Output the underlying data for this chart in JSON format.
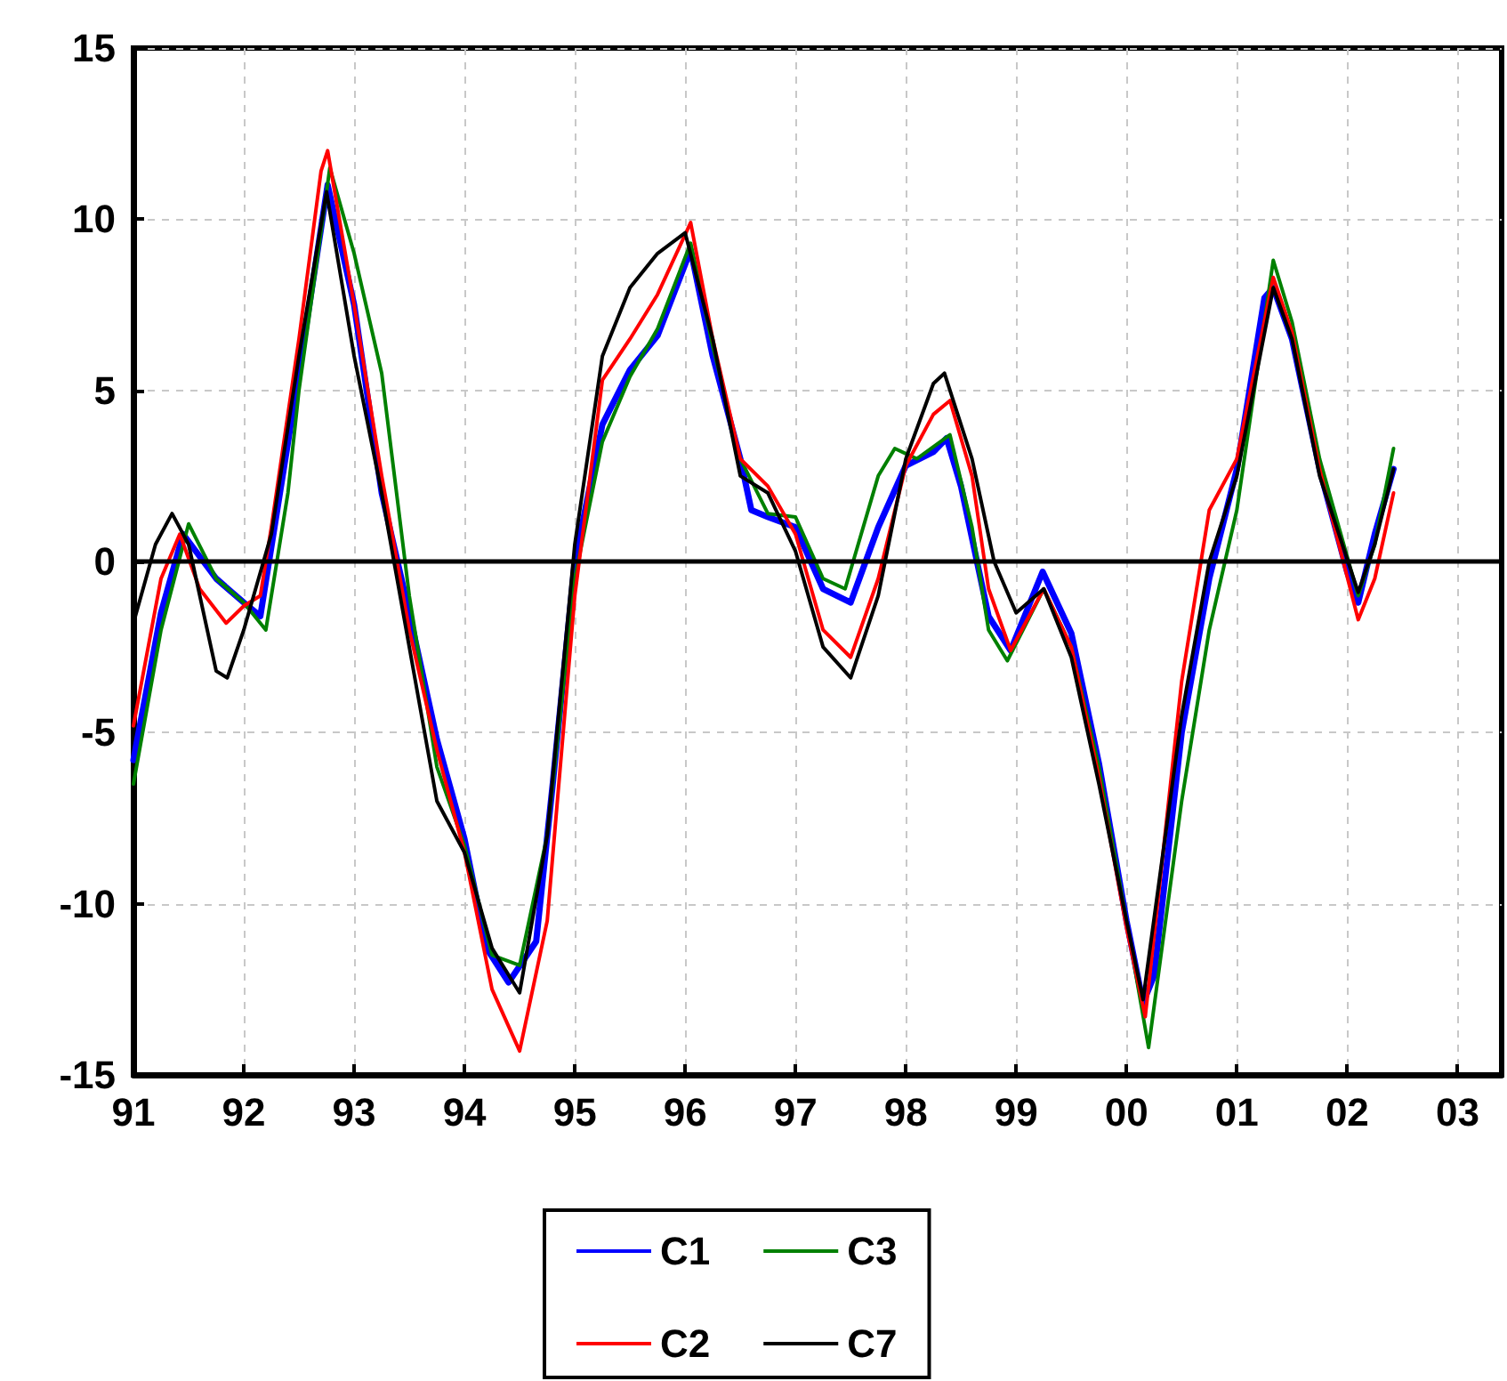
{
  "chart_data": {
    "type": "line",
    "legend": "bottom",
    "grid": true,
    "line_style": "solid",
    "marker": "none",
    "xlim": [
      1991,
      2003.4
    ],
    "xticks": [
      {
        "value": 1991,
        "label": "91"
      },
      {
        "value": 1992,
        "label": "92"
      },
      {
        "value": 1993,
        "label": "93"
      },
      {
        "value": 1994,
        "label": "94"
      },
      {
        "value": 1995,
        "label": "95"
      },
      {
        "value": 1996,
        "label": "96"
      },
      {
        "value": 1997,
        "label": "97"
      },
      {
        "value": 1998,
        "label": "98"
      },
      {
        "value": 1999,
        "label": "99"
      },
      {
        "value": 2000,
        "label": "00"
      },
      {
        "value": 2001,
        "label": "01"
      },
      {
        "value": 2002,
        "label": "02"
      },
      {
        "value": 2003,
        "label": "03"
      }
    ],
    "ylim": [
      -15,
      15
    ],
    "yticks": [
      -15,
      -10,
      -5,
      0,
      5,
      10,
      15
    ],
    "ref_lines": [
      {
        "axis": "y",
        "value": 0,
        "color": "#000000",
        "line_style": "solid"
      }
    ],
    "series": [
      {
        "name": "C1",
        "color": "#0000ff",
        "x": [
          1991,
          1991.25,
          1991.45,
          1991.75,
          1992,
          1992.15,
          1992.5,
          1992.76,
          1993,
          1993.25,
          1993.5,
          1993.75,
          1994,
          1994.2,
          1994.4,
          1994.65,
          1994.8,
          1995,
          1995.25,
          1995.5,
          1995.75,
          1996.05,
          1996.25,
          1996.5,
          1996.6,
          1996.75,
          1997,
          1997.25,
          1997.5,
          1997.75,
          1998,
          1998.25,
          1998.37,
          1998.5,
          1998.75,
          1998.95,
          1999.24,
          1999.5,
          1999.75,
          2000,
          2000.15,
          2000.25,
          2000.5,
          2000.75,
          2001,
          2001.25,
          2001.33,
          2001.5,
          2001.75,
          2002,
          2002.1,
          2002.25,
          2002.42
        ],
        "values": [
          -5.8,
          -1.5,
          0.8,
          -0.5,
          -1.2,
          -1.6,
          5.5,
          11.0,
          7.5,
          2.0,
          -1.5,
          -5.2,
          -8.1,
          -11.3,
          -12.3,
          -11.1,
          -6.5,
          0,
          4.0,
          5.6,
          6.6,
          9.1,
          6.0,
          3.0,
          1.5,
          1.3,
          1.0,
          -0.8,
          -1.2,
          1.0,
          2.8,
          3.2,
          3.6,
          2.2,
          -1.6,
          -2.6,
          -0.3,
          -2.1,
          -5.9,
          -10.5,
          -12.9,
          -12.1,
          -5.0,
          -0.5,
          2.7,
          7.7,
          8.0,
          6.5,
          2.7,
          -0.3,
          -1.2,
          0.8,
          2.7
        ]
      },
      {
        "name": "C3",
        "color": "#008000",
        "x": [
          1991,
          1991.25,
          1991.5,
          1991.75,
          1992,
          1992.2,
          1992.4,
          1992.5,
          1992.78,
          1993,
          1993.25,
          1993.5,
          1993.75,
          1994,
          1994.25,
          1994.5,
          1994.75,
          1995,
          1995.25,
          1995.5,
          1995.75,
          1996.05,
          1996.25,
          1996.5,
          1996.75,
          1997,
          1997.25,
          1997.45,
          1997.75,
          1997.9,
          1998.1,
          1998.4,
          1998.6,
          1998.75,
          1998.92,
          1999.25,
          1999.5,
          1999.75,
          2000,
          2000.2,
          2000.5,
          2000.75,
          2001,
          2001.33,
          2001.5,
          2001.75,
          2002.1,
          2002.25,
          2002.42
        ],
        "values": [
          -6.5,
          -2.0,
          1.1,
          -0.5,
          -1.2,
          -2.0,
          2.0,
          5.0,
          11.5,
          9.0,
          5.5,
          -1.0,
          -6.0,
          -8.3,
          -11.5,
          -11.8,
          -8.0,
          -0.5,
          3.5,
          5.4,
          6.8,
          9.3,
          6.3,
          3.0,
          1.4,
          1.3,
          -0.5,
          -0.8,
          2.5,
          3.3,
          3.0,
          3.7,
          1.0,
          -2.0,
          -2.9,
          -0.8,
          -2.5,
          -6.0,
          -10.5,
          -14.2,
          -7.0,
          -2.0,
          1.5,
          8.8,
          7.0,
          3.0,
          -1.0,
          0.5,
          3.3
        ]
      },
      {
        "name": "C2",
        "color": "#ff0000",
        "x": [
          1991,
          1991.25,
          1991.42,
          1991.6,
          1991.84,
          1992,
          1992.15,
          1992.25,
          1992.5,
          1992.7,
          1992.76,
          1993,
          1993.25,
          1993.5,
          1993.75,
          1994,
          1994.25,
          1994.5,
          1994.75,
          1995,
          1995.25,
          1995.5,
          1995.75,
          1996.05,
          1996.25,
          1996.5,
          1996.75,
          1997,
          1997.25,
          1997.5,
          1997.75,
          1998,
          1998.25,
          1998.4,
          1998.6,
          1998.75,
          1998.95,
          1999.25,
          1999.5,
          1999.75,
          2000,
          2000.17,
          2000.5,
          2000.75,
          2001,
          2001.33,
          2001.5,
          2001.75,
          2002.1,
          2002.25,
          2002.42
        ],
        "values": [
          -4.8,
          -0.5,
          0.8,
          -0.8,
          -1.8,
          -1.3,
          -1.0,
          1.0,
          6.5,
          11.4,
          12.0,
          7.5,
          2.5,
          -2.0,
          -5.5,
          -8.5,
          -12.5,
          -14.3,
          -10.5,
          -1.0,
          5.3,
          6.5,
          7.8,
          9.9,
          6.5,
          3.0,
          2.2,
          0.8,
          -2.0,
          -2.8,
          -0.5,
          2.8,
          4.3,
          4.7,
          2.5,
          -0.8,
          -2.6,
          -0.8,
          -2.5,
          -6.3,
          -10.7,
          -13.3,
          -3.5,
          1.5,
          3.0,
          8.3,
          6.7,
          2.7,
          -1.7,
          -0.5,
          2.0
        ]
      },
      {
        "name": "C7",
        "color": "#000000",
        "x": [
          1991,
          1991.2,
          1991.35,
          1991.5,
          1991.75,
          1991.85,
          1992,
          1992.25,
          1992.5,
          1992.75,
          1993,
          1993.25,
          1993.5,
          1993.75,
          1994,
          1994.25,
          1994.5,
          1994.75,
          1995,
          1995.25,
          1995.5,
          1995.75,
          1996,
          1996.25,
          1996.5,
          1996.75,
          1997,
          1997.25,
          1997.5,
          1997.75,
          1998,
          1998.25,
          1998.35,
          1998.6,
          1998.8,
          1999,
          1999.25,
          1999.5,
          1999.75,
          2000,
          2000.15,
          2000.5,
          2000.75,
          2001,
          2001.33,
          2001.5,
          2001.75,
          2002.1,
          2002.25,
          2002.42
        ],
        "values": [
          -1.8,
          0.5,
          1.4,
          0.5,
          -3.2,
          -3.4,
          -2.0,
          0.8,
          6.0,
          10.8,
          6.0,
          2.0,
          -2.5,
          -7.0,
          -8.5,
          -11.3,
          -12.6,
          -8.0,
          0.5,
          6.0,
          8.0,
          9.0,
          9.6,
          6.5,
          2.5,
          2.0,
          0.3,
          -2.5,
          -3.4,
          -1.0,
          3.0,
          5.2,
          5.5,
          3.0,
          0.0,
          -1.5,
          -0.8,
          -2.8,
          -6.5,
          -10.5,
          -12.8,
          -4.5,
          0.0,
          2.5,
          8.0,
          6.5,
          2.5,
          -0.9,
          0.5,
          2.7
        ]
      }
    ]
  }
}
